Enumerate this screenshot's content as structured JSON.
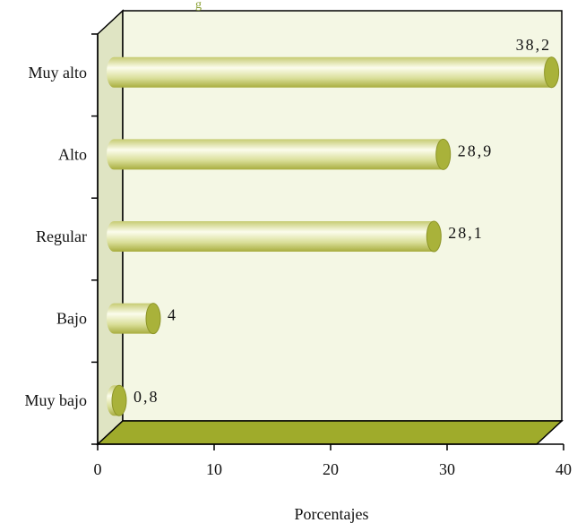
{
  "chart_data": {
    "type": "bar",
    "orientation": "horizontal",
    "categories": [
      "Muy alto",
      "Alto",
      "Regular",
      "Bajo",
      "Muy bajo"
    ],
    "values": [
      38.2,
      28.9,
      28.1,
      4,
      0.8
    ],
    "value_labels": [
      "38,2",
      "28,9",
      "28,1",
      "4",
      "0,8"
    ],
    "xlabel": "Porcentajes",
    "ylabel": "",
    "xlim": [
      0,
      40
    ],
    "xticks": [
      "0",
      "10",
      "20",
      "30",
      "40"
    ],
    "grid": false,
    "bar_shape": "cylinder",
    "colors": {
      "bar_light": "#f4f6dc",
      "bar_mid": "#d9de98",
      "bar_dark": "#a8ad3e",
      "bar_cap": "#a9b23a",
      "wall": "#f4f7e4",
      "side_wall": "#dfe4c3",
      "floor": "#9fab2b",
      "title_tint": "#8aa034"
    }
  }
}
